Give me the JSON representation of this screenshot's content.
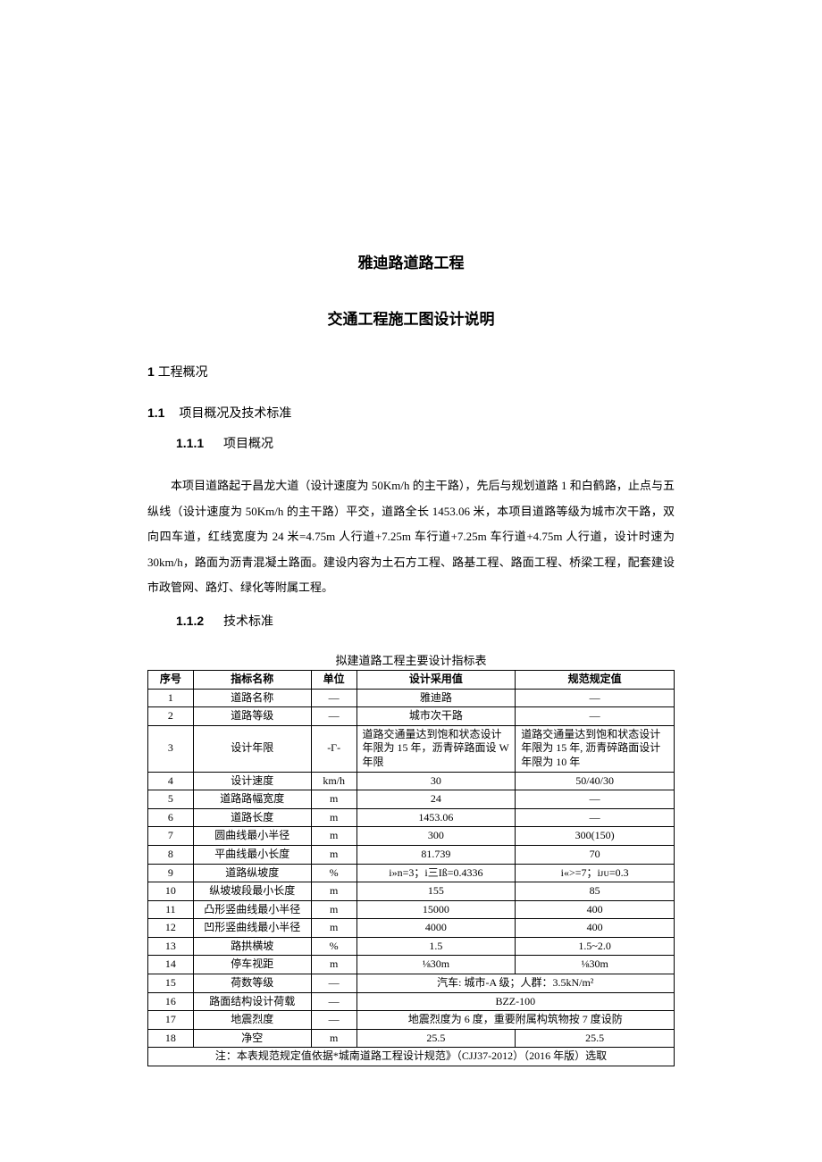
{
  "title1": "雅迪路道路工程",
  "title2": "交通工程施工图设计说明",
  "section1": {
    "num": "1",
    "label": "工程概况"
  },
  "section11": {
    "num": "1.1",
    "label": "项目概况及技术标准"
  },
  "section111": {
    "num": "1.1.1",
    "label": "项目概况"
  },
  "section112": {
    "num": "1.1.2",
    "label": "技术标准"
  },
  "paragraph1": "本项目道路起于昌龙大道（设计速度为 50Km/h 的主干路），先后与规划道路 1 和白鹤路，止点与五纵线（设计速度为 50Km/h 的主干路）平交，道路全长 1453.06 米，本项目道路等级为城市次干路，双向四车道，红线宽度为 24 米=4.75m 人行道+7.25m 车行道+7.25m 车行道+4.75m 人行道，设计时速为 30km/h，路面为沥青混凝土路面。建设内容为土石方工程、路基工程、路面工程、桥梁工程，配套建设市政管网、路灯、绿化等附属工程。",
  "table_caption": "拟建道路工程主要设计指标表",
  "table": {
    "headers": [
      "序号",
      "指标名称",
      "单位",
      "设计采用值",
      "规范规定值"
    ],
    "rows": [
      {
        "seq": "1",
        "name": "道路名称",
        "unit": "—",
        "val": "雅迪路",
        "spec": "—"
      },
      {
        "seq": "2",
        "name": "道路等级",
        "unit": "—",
        "val": "城市次干路",
        "spec": "—"
      },
      {
        "seq": "3",
        "name": "设计年限",
        "unit": "-Γ-",
        "val": "道路交通量达到饱和状态设计年限为 15 年，沥青碎路面设 W 年限",
        "spec": "道路交通量达到饱和状态设计年限为 15 年, 沥青碎路面设计年限为 10 年"
      },
      {
        "seq": "4",
        "name": "设计速度",
        "unit": "km/h",
        "val": "30",
        "spec": "50/40/30"
      },
      {
        "seq": "5",
        "name": "道路路幅宽度",
        "unit": "m",
        "val": "24",
        "spec": "—"
      },
      {
        "seq": "6",
        "name": "道路长度",
        "unit": "m",
        "val": "1453.06",
        "spec": "—"
      },
      {
        "seq": "7",
        "name": "圆曲线最小半径",
        "unit": "m",
        "val": "300",
        "spec": "300(150)"
      },
      {
        "seq": "8",
        "name": "平曲线最小长度",
        "unit": "m",
        "val": "81.739",
        "spec": "70"
      },
      {
        "seq": "9",
        "name": "道路纵坡度",
        "unit": "%",
        "val": "i»n=3；i三Iß=0.4336",
        "spec": "i«>=7；iᴊᴜ=0.3"
      },
      {
        "seq": "10",
        "name": "纵坡坡段最小长度",
        "unit": "m",
        "val": "155",
        "spec": "85"
      },
      {
        "seq": "11",
        "name": "凸形竖曲线最小半径",
        "unit": "m",
        "val": "15000",
        "spec": "400"
      },
      {
        "seq": "12",
        "name": "凹形竖曲线最小半径",
        "unit": "m",
        "val": "4000",
        "spec": "400"
      },
      {
        "seq": "13",
        "name": "路拱横坡",
        "unit": "%",
        "val": "1.5",
        "spec": "1.5~2.0"
      },
      {
        "seq": "14",
        "name": "停车视距",
        "unit": "m",
        "val": "⅛30m",
        "spec": "⅛30m"
      },
      {
        "seq": "15",
        "name": "荷数等级",
        "unit": "—",
        "val_merged": "汽车: 城市-A 级；人群：3.5kN/m²"
      },
      {
        "seq": "16",
        "name": "路面结构设计荷载",
        "unit": "—",
        "val_merged": "BZZ-100"
      },
      {
        "seq": "17",
        "name": "地震烈度",
        "unit": "—",
        "val_merged": "地震烈度为 6 度，重要附属构筑物按 7 度设防"
      },
      {
        "seq": "18",
        "name": "净空",
        "unit": "m",
        "val": "25.5",
        "spec": "25.5"
      }
    ],
    "footnote": "注：本表规范规定值依据*城南道路工程设计规范》（CJJ37-2012）（2016 年版）选取"
  }
}
